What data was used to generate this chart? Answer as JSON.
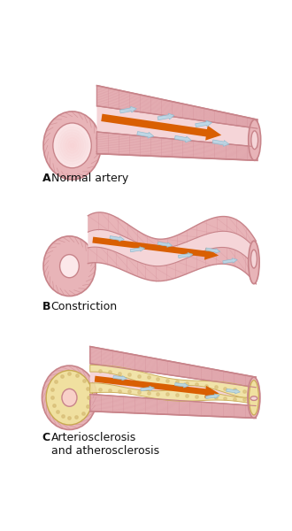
{
  "bg_color": "#ffffff",
  "wall_color": "#e8b4b8",
  "wall_edge": "#c8848a",
  "wall_dark": "#d4909a",
  "lumen_color": "#f5d5d8",
  "lumen_light": "#fce8ea",
  "arrow_color": "#d95f02",
  "flow_color": "#b8d8e8",
  "flow_edge": "#90b8cc",
  "plaque_color": "#f0e0a0",
  "plaque_edge": "#c8a850",
  "plaque_dark": "#d4b870",
  "labels": [
    "A",
    "Normal artery",
    "B",
    "Constriction",
    "C",
    "Arteriosclerosis\nand atherosclerosis"
  ],
  "label_fontsize": 9
}
